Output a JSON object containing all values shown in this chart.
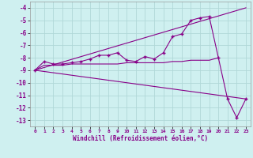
{
  "xlabel": "Windchill (Refroidissement éolien,°C)",
  "background_color": "#cff0f0",
  "grid_color": "#b0d8d8",
  "line_color": "#880088",
  "xlim": [
    -0.5,
    23.5
  ],
  "ylim": [
    -13.5,
    -3.5
  ],
  "xticks": [
    0,
    1,
    2,
    3,
    4,
    5,
    6,
    7,
    8,
    9,
    10,
    11,
    12,
    13,
    14,
    15,
    16,
    17,
    18,
    19,
    20,
    21,
    22,
    23
  ],
  "yticks": [
    -13,
    -12,
    -11,
    -10,
    -9,
    -8,
    -7,
    -6,
    -5,
    -4
  ],
  "series1_x": [
    0,
    1,
    2,
    3,
    4,
    5,
    6,
    7,
    8,
    9,
    10,
    11,
    12,
    13,
    14,
    15,
    16,
    17,
    18,
    19,
    20,
    21,
    22,
    23
  ],
  "series1_y": [
    -9.0,
    -8.3,
    -8.5,
    -8.5,
    -8.4,
    -8.3,
    -8.1,
    -7.8,
    -7.8,
    -7.6,
    -8.2,
    -8.3,
    -7.9,
    -8.1,
    -7.6,
    -6.3,
    -6.1,
    -5.0,
    -4.8,
    -4.7,
    -8.0,
    -11.3,
    -12.8,
    -11.3
  ],
  "series2_x": [
    0,
    23
  ],
  "series2_y": [
    -9.0,
    -4.0
  ],
  "series3_x": [
    0,
    23
  ],
  "series3_y": [
    -9.0,
    -11.3
  ],
  "series4_x": [
    0,
    1,
    2,
    3,
    4,
    5,
    6,
    7,
    8,
    9,
    10,
    11,
    12,
    13,
    14,
    15,
    16,
    17,
    18,
    19,
    20
  ],
  "series4_y": [
    -9.0,
    -8.6,
    -8.6,
    -8.6,
    -8.5,
    -8.5,
    -8.5,
    -8.5,
    -8.5,
    -8.5,
    -8.4,
    -8.4,
    -8.4,
    -8.4,
    -8.4,
    -8.3,
    -8.3,
    -8.2,
    -8.2,
    -8.2,
    -8.0
  ]
}
